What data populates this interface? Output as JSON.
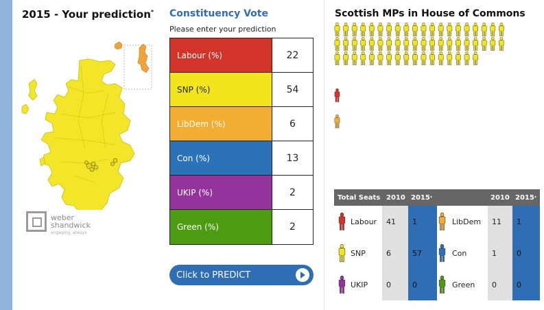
{
  "left": {
    "title": "2015 - Your prediction",
    "title_mark": "*",
    "logo_line1": "weber",
    "logo_line2": "shandwick",
    "logo_tagline": "engaging, always"
  },
  "middle": {
    "title": "Constituency Vote",
    "subtitle": "Please enter your prediction",
    "parties": [
      {
        "label": "Labour (%)",
        "value": "22",
        "color": "#d3342a"
      },
      {
        "label": "SNP (%)",
        "value": "54",
        "color": "#f2e51c"
      },
      {
        "label": "LibDem (%)",
        "value": "6",
        "color": "#f2ad33"
      },
      {
        "label": "Con (%)",
        "value": "13",
        "color": "#2b72b8"
      },
      {
        "label": "UKIP (%)",
        "value": "2",
        "color": "#94339b"
      },
      {
        "label": "Green (%)",
        "value": "2",
        "color": "#4c9b10"
      }
    ],
    "button_label": "Click to PREDICT"
  },
  "right": {
    "title": "Scottish MPs in House of Commons",
    "mp_counts": {
      "snp": 57,
      "labour": 1,
      "libdem": 1
    },
    "mp_colors": {
      "snp": "#f2e51c",
      "labour": "#d3342a",
      "libdem": "#f2ad33"
    },
    "table": {
      "header_total": "Total Seats",
      "header_2010": "2010",
      "header_2015": "2015",
      "header_mark": "*",
      "rows": [
        {
          "left_party": "Labour",
          "left_color": "#d3342a",
          "left_2010": "41",
          "left_2015": "1",
          "right_party": "LibDem",
          "right_color": "#f2ad33",
          "right_2010": "11",
          "right_2015": "1"
        },
        {
          "left_party": "SNP",
          "left_color": "#f2e51c",
          "left_2010": "6",
          "left_2015": "57",
          "right_party": "Con",
          "right_color": "#2b72b8",
          "right_2010": "1",
          "right_2015": "0"
        },
        {
          "left_party": "UKIP",
          "left_color": "#94339b",
          "left_2010": "0",
          "left_2015": "0",
          "right_party": "Green",
          "right_color": "#4c9b10",
          "right_2010": "0",
          "right_2015": "0"
        }
      ]
    }
  }
}
